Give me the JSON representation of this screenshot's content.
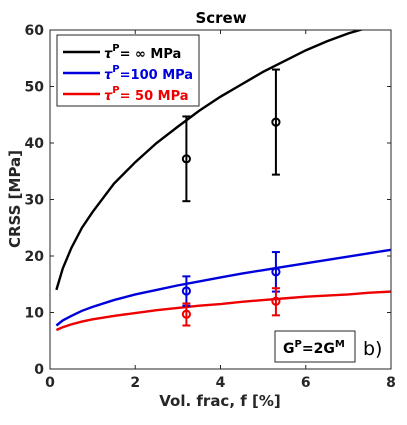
{
  "chart_data": {
    "type": "line",
    "title": "Screw",
    "xlabel": "Vol. frac, f [%]",
    "ylabel": "CRSS [MPa]",
    "xlim": [
      0,
      8
    ],
    "ylim": [
      0,
      60
    ],
    "xticks": [
      "0",
      "2",
      "4",
      "6",
      "8"
    ],
    "yticks": [
      "0",
      "10",
      "20",
      "30",
      "40",
      "50",
      "60"
    ],
    "grid": false,
    "legend_position": "top-left",
    "series": [
      {
        "name_symbol": "τ",
        "name_sup": "P",
        "name_rest": "=  ∞ MPa",
        "color": "#000000",
        "curve": {
          "x": [
            0.15,
            0.3,
            0.5,
            0.75,
            1,
            1.5,
            2,
            2.5,
            3,
            3.5,
            4,
            4.5,
            5,
            5.5,
            6,
            6.5,
            7,
            7.5,
            8
          ],
          "y": [
            14.0,
            17.8,
            21.4,
            25.0,
            27.8,
            32.8,
            36.6,
            40.0,
            42.9,
            45.7,
            48.2,
            50.4,
            52.6,
            54.5,
            56.4,
            58.0,
            59.4,
            60.5,
            61.2
          ]
        },
        "points": [
          {
            "x": 3.2,
            "y": 37.2,
            "err_low": 29.7,
            "err_high": 44.7
          },
          {
            "x": 5.3,
            "y": 43.7,
            "err_low": 34.4,
            "err_high": 53.0
          }
        ]
      },
      {
        "name_symbol": "τ",
        "name_sup": "P",
        "name_rest": "=100 MPa",
        "color": "#0000dd",
        "curve": {
          "x": [
            0.15,
            0.3,
            0.5,
            0.75,
            1,
            1.5,
            2,
            2.5,
            3,
            3.5,
            4,
            4.5,
            5,
            5.5,
            6,
            6.5,
            7,
            7.5,
            8
          ],
          "y": [
            7.7,
            8.6,
            9.4,
            10.3,
            11.0,
            12.2,
            13.2,
            14.0,
            14.8,
            15.5,
            16.2,
            16.9,
            17.5,
            18.1,
            18.7,
            19.3,
            19.9,
            20.5,
            21.1
          ]
        },
        "points": [
          {
            "x": 3.2,
            "y": 13.8,
            "err_low": 11.2,
            "err_high": 16.4
          },
          {
            "x": 5.3,
            "y": 17.2,
            "err_low": 13.7,
            "err_high": 20.7
          }
        ]
      },
      {
        "name_symbol": "τ",
        "name_sup": "P",
        "name_rest": "=  50 MPa",
        "color": "#ee0000",
        "curve": {
          "x": [
            0.15,
            0.3,
            0.5,
            0.75,
            1,
            1.5,
            2,
            2.5,
            3,
            3.5,
            4,
            4.5,
            5,
            5.5,
            6,
            6.5,
            7,
            7.5,
            8
          ],
          "y": [
            6.9,
            7.4,
            7.9,
            8.4,
            8.8,
            9.4,
            9.9,
            10.4,
            10.8,
            11.2,
            11.5,
            11.9,
            12.2,
            12.5,
            12.8,
            13.0,
            13.2,
            13.5,
            13.7
          ]
        },
        "points": [
          {
            "x": 3.2,
            "y": 9.7,
            "err_low": 7.7,
            "err_high": 11.6
          },
          {
            "x": 5.3,
            "y": 12.0,
            "err_low": 9.5,
            "err_high": 14.3
          }
        ]
      }
    ],
    "annotations": {
      "box": {
        "base1": "G",
        "sup1": "P",
        "mid": "=2G",
        "sup2": "M"
      },
      "panel_label": "b)"
    }
  }
}
